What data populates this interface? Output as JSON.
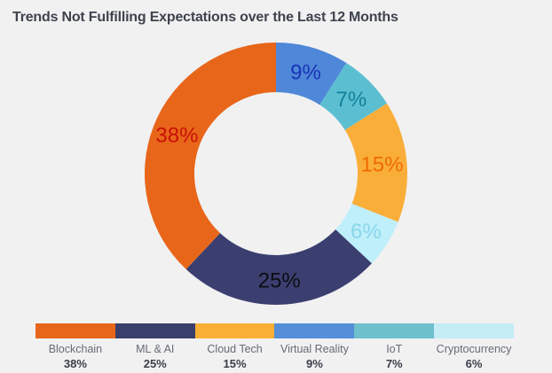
{
  "background_color": "#F1F1F2",
  "chart_data": {
    "type": "pie",
    "variant": "donut",
    "title": "Trends Not Fulfilling Expectations over the Last 12 Months",
    "title_color": "#3E434D",
    "total": 100,
    "start_angle_deg": 0,
    "clockwise": true,
    "inner_radius_ratio": 0.62,
    "legend_position": "bottom",
    "slices_from_top_clockwise": [
      {
        "label": "Virtual Reality",
        "value": 9,
        "display": "9%",
        "color": "#4F88D8",
        "label_color": "#1834B8"
      },
      {
        "label": "IoT",
        "value": 7,
        "display": "7%",
        "color": "#5CBFD1",
        "label_color": "#12809A"
      },
      {
        "label": "Cloud Tech",
        "value": 15,
        "display": "15%",
        "color": "#FAAE3A",
        "label_color": "#EF6B00"
      },
      {
        "label": "Cryptocurrency",
        "value": 6,
        "display": "6%",
        "color": "#BEEFFA",
        "label_color": "#8AD6EA"
      },
      {
        "label": "ML & AI",
        "value": 25,
        "display": "25%",
        "color": "#3B3F70",
        "label_color": "#0D0D12"
      },
      {
        "label": "Blockchain",
        "value": 38,
        "display": "38%",
        "color": "#E8661A",
        "label_color": "#C81008"
      }
    ],
    "legend": [
      {
        "label": "Blockchain",
        "percent": "38%",
        "color": "#E8661A"
      },
      {
        "label": "ML & AI",
        "percent": "25%",
        "color": "#3A3E6D"
      },
      {
        "label": "Cloud Tech",
        "percent": "15%",
        "color": "#F9AF35"
      },
      {
        "label": "Virtual Reality",
        "percent": "9%",
        "color": "#548FD8"
      },
      {
        "label": "IoT",
        "percent": "7%",
        "color": "#6FC0CD"
      },
      {
        "label": "Cryptocurrency",
        "percent": "6%",
        "color": "#C4EDF6"
      }
    ]
  }
}
